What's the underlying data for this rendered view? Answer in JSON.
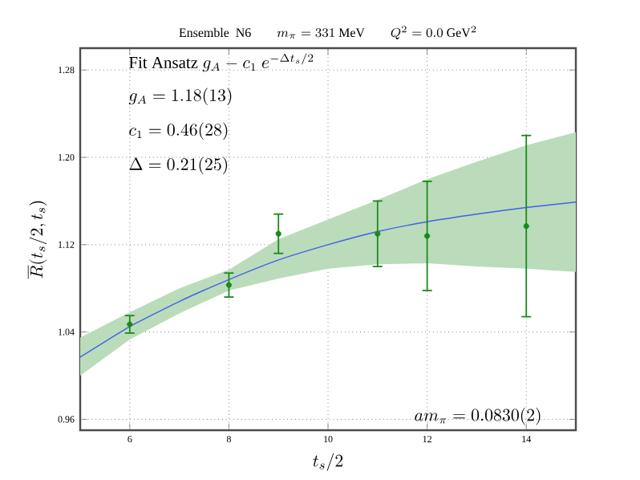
{
  "chart_data": {
    "type": "scatter",
    "title": "\\mathrm{Ensemble\\ \\ N6}\\qquad m_\\pi=331\\ \\mathrm{MeV}\\qquad Q^2=0.0\\ \\mathrm{GeV}^2",
    "xlabel": "t_s/2",
    "ylabel": "\\overline{R}(t_s/2,t_s)",
    "annotations": [
      "\\mathrm{Fit\\ Ansatz}\\ g_A-c_1\\ e^{-\\Delta t_s/2}",
      "g_A=1.18(13)",
      "c_1=0.46(28)",
      "\\Delta=0.21(25)",
      "am_\\pi=0.0830(2)"
    ],
    "xlim": [
      5,
      15
    ],
    "ylim": [
      0.95,
      1.3
    ],
    "xticks": [
      6,
      8,
      10,
      12,
      14
    ],
    "yticks": [
      0.96,
      1.04,
      1.12,
      {
        "value": 1.2,
        "label": "1.20"
      },
      1.28
    ],
    "grid": true,
    "series": [
      {
        "type": "line",
        "color": "#4060ee",
        "line_style": "solid",
        "marker": "none",
        "x": [
          5,
          6,
          7,
          8,
          9,
          10,
          11,
          12,
          13,
          14,
          15
        ],
        "values": [
          1.017,
          1.045,
          1.068,
          1.088,
          1.106,
          1.12,
          1.132,
          1.141,
          1.148,
          1.154,
          1.159
        ],
        "lower": [
          1.0,
          1.033,
          1.057,
          1.078,
          1.089,
          1.098,
          1.102,
          1.103,
          1.1,
          1.098,
          1.095
        ],
        "upper": [
          1.035,
          1.058,
          1.08,
          1.097,
          1.125,
          1.143,
          1.161,
          1.18,
          1.196,
          1.211,
          1.223
        ]
      },
      {
        "color": "#1a8a1a",
        "marker": "circle",
        "x": [
          6,
          8,
          9,
          11,
          12,
          14
        ],
        "values": [
          1.047,
          1.083,
          1.13,
          1.13,
          1.128,
          1.137
        ],
        "errors": [
          0.008,
          0.011,
          0.018,
          0.03,
          0.05,
          0.083
        ]
      }
    ]
  }
}
